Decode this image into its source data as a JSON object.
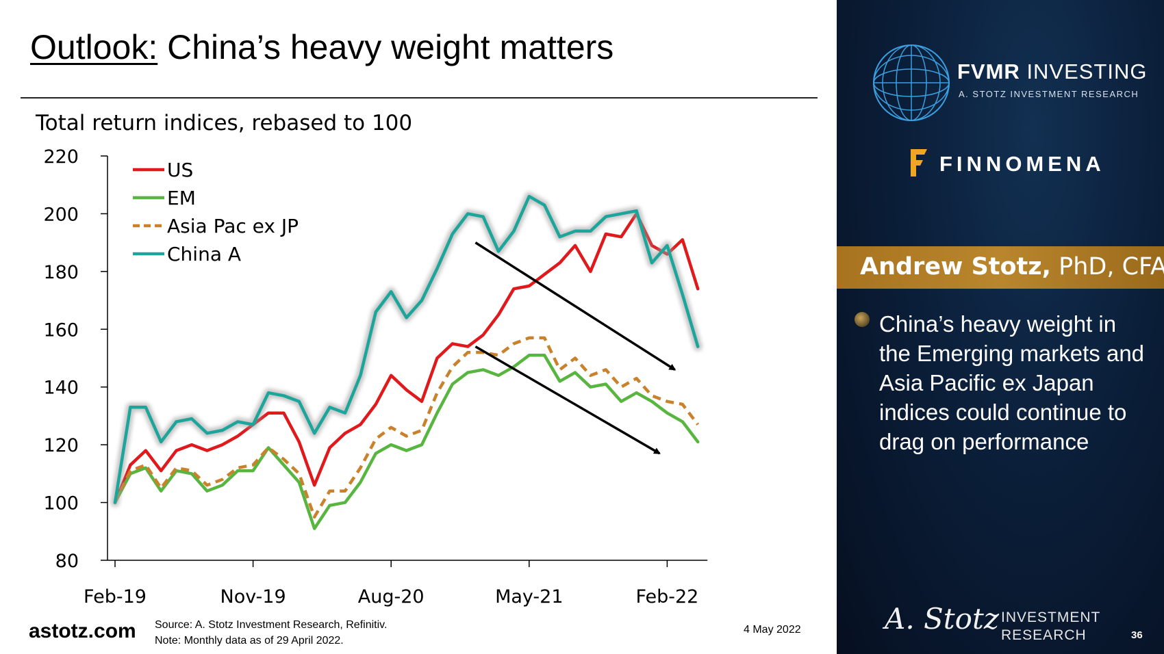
{
  "slide": {
    "title_keyword": "Outlook:",
    "title_rest": " China’s heavy weight matters",
    "subtitle": "Total return indices, rebased to 100",
    "source_line": "Source: A. Stotz Investment Research, Refinitiv.",
    "note_line": "Note: Monthly data as of 29 April 2022.",
    "site": "astotz.com",
    "date": "4 May 2022",
    "page_number": "36"
  },
  "sidebar": {
    "brand_name_bold": "FVMR",
    "brand_name_rest": " INVESTING",
    "brand_sub": "A. STOTZ INVESTMENT RESEARCH",
    "partner": "FINNOMENA",
    "presenter_name": "Andrew Stotz,",
    "presenter_credentials": " PhD, CFA",
    "bullet": "China’s heavy weight in the Emerging markets and Asia Pacific ex Japan indices could continue to drag on performance",
    "signature": "A. Stotz",
    "signature_line1": "INVESTMENT",
    "signature_line2": "RESEARCH",
    "colors": {
      "banner": "#b07b25",
      "background": "#0b1f3a"
    }
  },
  "chart_data": {
    "type": "line",
    "title": "",
    "ylabel": "Total return indices, rebased to 100",
    "xlabel": "",
    "ylim": [
      80,
      220
    ],
    "yticks": [
      80,
      100,
      120,
      140,
      160,
      180,
      200,
      220
    ],
    "xtick_labels": [
      "Feb-19",
      "Nov-19",
      "Aug-20",
      "May-21",
      "Feb-22"
    ],
    "xtick_indices": [
      0,
      9,
      18,
      27,
      36
    ],
    "legend_position": "top-left",
    "series": [
      {
        "name": "US",
        "color": "#e0191c",
        "dash": "solid",
        "values": [
          100,
          113,
          118,
          111,
          118,
          120,
          118,
          120,
          123,
          127,
          131,
          131,
          121,
          106,
          119,
          124,
          127,
          134,
          144,
          139,
          135,
          150,
          155,
          154,
          158,
          165,
          174,
          175,
          179,
          183,
          189,
          180,
          193,
          192,
          200,
          189,
          186,
          191,
          174
        ]
      },
      {
        "name": "EM",
        "color": "#58b53f",
        "dash": "solid",
        "values": [
          100,
          110,
          112,
          104,
          111,
          110,
          104,
          106,
          111,
          111,
          119,
          113,
          107,
          91,
          99,
          100,
          107,
          117,
          120,
          118,
          120,
          131,
          141,
          145,
          146,
          144,
          147,
          151,
          151,
          142,
          145,
          140,
          141,
          135,
          138,
          135,
          131,
          128,
          121
        ]
      },
      {
        "name": "Asia Pac ex JP",
        "color": "#c9822b",
        "dash": "dashed",
        "values": [
          100,
          111,
          113,
          105,
          112,
          111,
          106,
          108,
          112,
          113,
          119,
          115,
          110,
          95,
          104,
          104,
          112,
          122,
          126,
          123,
          125,
          138,
          147,
          152,
          152,
          151,
          155,
          157,
          157,
          146,
          150,
          144,
          146,
          140,
          143,
          137,
          135,
          134,
          127
        ]
      },
      {
        "name": "China A",
        "color": "#1ca69b",
        "dash": "solid",
        "values": [
          100,
          133,
          133,
          121,
          128,
          129,
          124,
          125,
          128,
          127,
          138,
          137,
          135,
          124,
          133,
          131,
          144,
          166,
          173,
          164,
          170,
          181,
          193,
          200,
          199,
          187,
          194,
          206,
          203,
          192,
          194,
          194,
          199,
          200,
          201,
          183,
          189,
          172,
          154
        ]
      }
    ],
    "annotations": [
      {
        "type": "arrow",
        "from": [
          23.5,
          190
        ],
        "to": [
          36.5,
          146
        ]
      },
      {
        "type": "arrow",
        "from": [
          23.5,
          154
        ],
        "to": [
          35.5,
          117
        ]
      }
    ]
  }
}
